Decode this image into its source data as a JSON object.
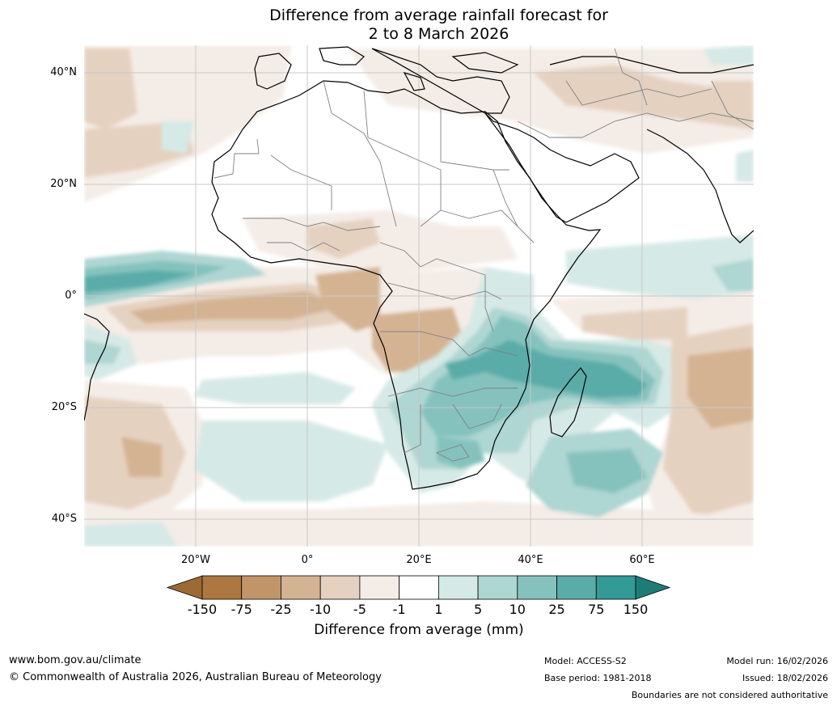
{
  "title": {
    "line1": "Difference from average rainfall forecast for",
    "line2": "2 to 8 March 2026"
  },
  "map": {
    "lat_labels": [
      "40°N",
      "20°N",
      "0°",
      "20°S",
      "40°S"
    ],
    "lon_labels": [
      "20°W",
      "0°",
      "20°E",
      "40°E",
      "60°E"
    ]
  },
  "legend": {
    "title": "Difference from average (mm)",
    "ticks": [
      "-150",
      "-75",
      "-25",
      "-10",
      "-5",
      "-1",
      "1",
      "5",
      "10",
      "25",
      "75",
      "150"
    ],
    "colors": [
      "#9c6a34",
      "#ac7741",
      "#c19569",
      "#d4b393",
      "#e5d1c0",
      "#f4ece6",
      "#ffffff",
      "#d5e9e6",
      "#aed6d2",
      "#85c2be",
      "#5aaca9",
      "#339a96",
      "#1f7b78"
    ]
  },
  "footer": {
    "website": "www.bom.gov.au/climate",
    "copyright": "© Commonwealth of Australia 2026, Australian Bureau of Meteorology",
    "model": "Model: ACCESS-S2",
    "base_period": "Base period: 1981-2018",
    "model_run": "Model run: 16/02/2026",
    "issued": "Issued: 18/02/2026",
    "disclaimer": "Boundaries are not considered authoritative"
  }
}
